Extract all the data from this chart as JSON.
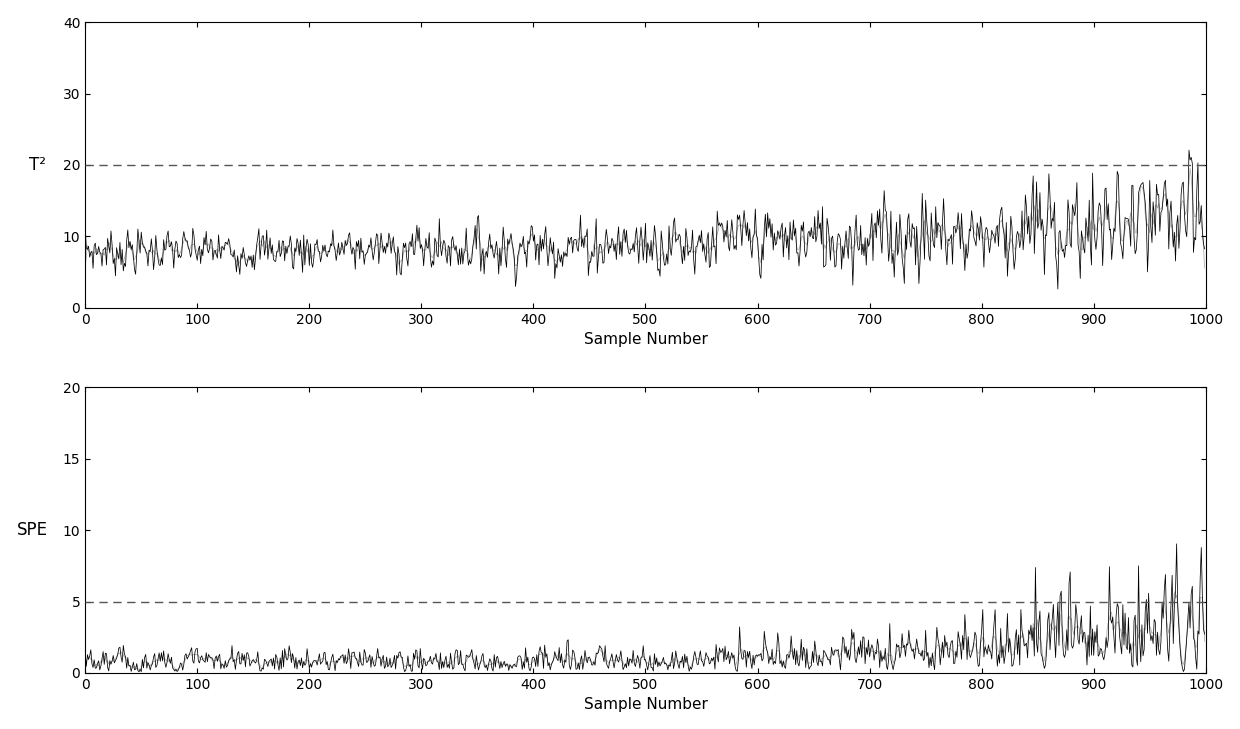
{
  "n_samples": 1000,
  "t2_threshold": 20,
  "spe_threshold": 5,
  "t2_ylim": [
    0,
    40
  ],
  "spe_ylim": [
    0,
    20
  ],
  "t2_yticks": [
    0,
    10,
    20,
    30,
    40
  ],
  "spe_yticks": [
    0,
    5,
    10,
    15,
    20
  ],
  "xlabel": "Sample Number",
  "t2_ylabel": "T²",
  "spe_ylabel": "SPE",
  "xlim": [
    0,
    1000
  ],
  "xticks": [
    0,
    100,
    200,
    300,
    400,
    500,
    600,
    700,
    800,
    900,
    1000
  ],
  "line_color_black": "#000000",
  "line_color_gray": "#aaaaaa",
  "threshold_color": "#555555",
  "background_color": "#ffffff",
  "seed": 7
}
